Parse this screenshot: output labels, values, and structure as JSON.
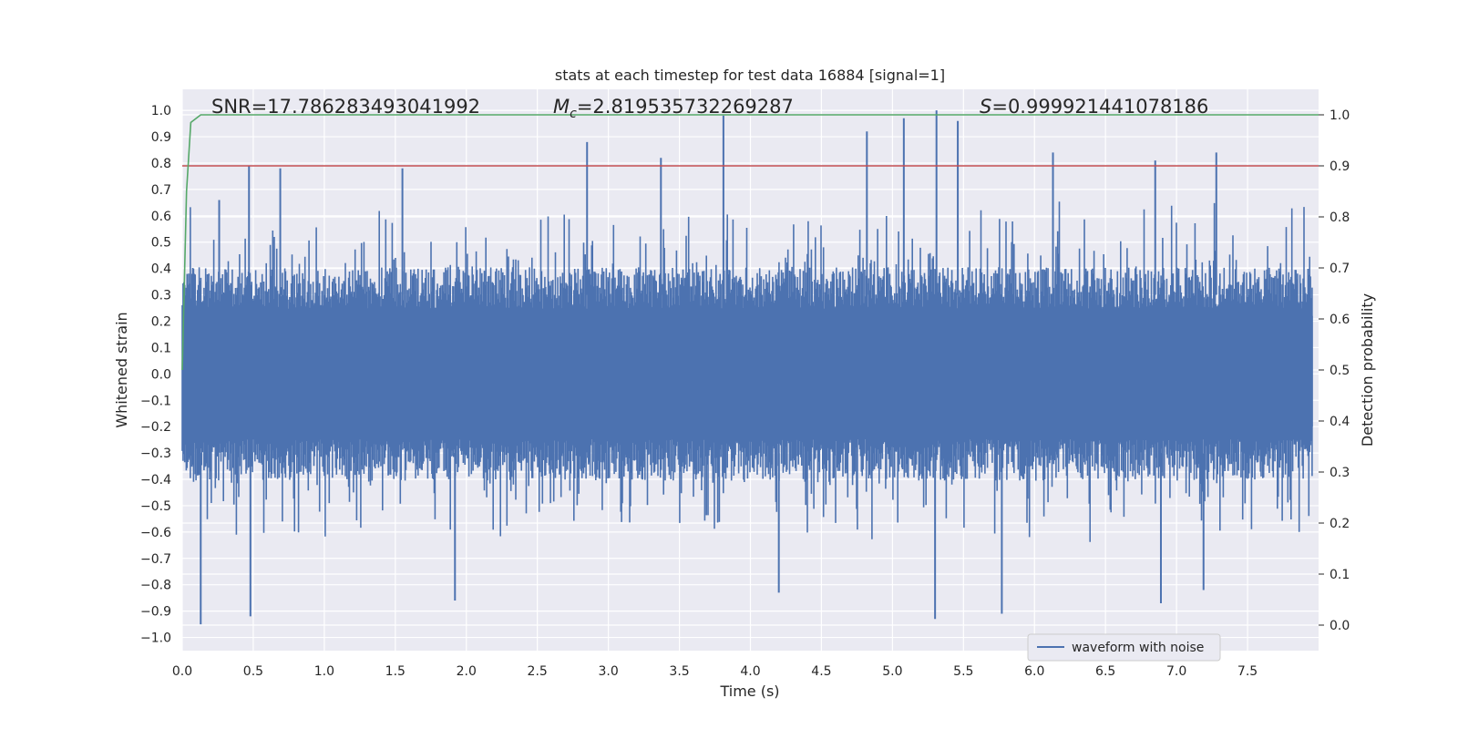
{
  "chart_data": {
    "type": "line",
    "title": "stats at each timestep for test data 16884 [signal=1]",
    "xlabel": "Time (s)",
    "ylabel_left": "Whitened strain",
    "ylabel_right": "Detection probability",
    "xlim": [
      0.0,
      8.0
    ],
    "ylim_left": [
      -1.05,
      1.08
    ],
    "ylim_right": [
      -0.05,
      1.05
    ],
    "x_ticks": [
      "0.0",
      "0.5",
      "1.0",
      "1.5",
      "2.0",
      "2.5",
      "3.0",
      "3.5",
      "4.0",
      "4.5",
      "5.0",
      "5.5",
      "6.0",
      "6.5",
      "7.0",
      "7.5"
    ],
    "y_left_ticks": [
      "1.0",
      "0.9",
      "0.8",
      "0.7",
      "0.6",
      "0.5",
      "0.4",
      "0.3",
      "0.2",
      "0.1",
      "0.0",
      "-0.1",
      "-0.2",
      "-0.3",
      "-0.4",
      "-0.5",
      "-0.6",
      "-0.7",
      "-0.8",
      "-0.9",
      "-1.0"
    ],
    "y_right_ticks": [
      "1.0",
      "0.9",
      "0.8",
      "0.7",
      "0.6",
      "0.5",
      "0.4",
      "0.3",
      "0.2",
      "0.1",
      "0.0"
    ],
    "grid": true,
    "legend_position": "lower-right",
    "annotations": {
      "snr": "SNR=17.786283493041992",
      "mc_symbol": "M",
      "mc_subscript": "c",
      "mc_value": "=2.819535732269287",
      "s_symbol": "S",
      "s_value": "=0.999921441078186"
    },
    "series": [
      {
        "name": "waveform with noise",
        "axis": "left",
        "color": "#4c72b0",
        "envelope_typical": [
          -0.45,
          0.45
        ],
        "peaks": [
          {
            "x": 0.26,
            "y": 0.66
          },
          {
            "x": 0.47,
            "y": 0.79
          },
          {
            "x": 0.69,
            "y": 0.78
          },
          {
            "x": 1.55,
            "y": 0.78
          },
          {
            "x": 2.85,
            "y": 0.88
          },
          {
            "x": 3.37,
            "y": 0.82
          },
          {
            "x": 3.81,
            "y": 0.98
          },
          {
            "x": 4.82,
            "y": 0.92
          },
          {
            "x": 5.08,
            "y": 0.97
          },
          {
            "x": 5.31,
            "y": 1.0
          },
          {
            "x": 5.46,
            "y": 0.96
          },
          {
            "x": 6.13,
            "y": 0.84
          },
          {
            "x": 6.85,
            "y": 0.81
          },
          {
            "x": 7.28,
            "y": 0.84
          }
        ],
        "troughs": [
          {
            "x": 0.13,
            "y": -0.95
          },
          {
            "x": 0.48,
            "y": -0.92
          },
          {
            "x": 1.92,
            "y": -0.86
          },
          {
            "x": 4.2,
            "y": -0.83
          },
          {
            "x": 5.3,
            "y": -0.93
          },
          {
            "x": 5.77,
            "y": -0.91
          },
          {
            "x": 6.89,
            "y": -0.87
          },
          {
            "x": 7.19,
            "y": -0.82
          }
        ]
      },
      {
        "name": "",
        "axis": "right",
        "color": "#55a868",
        "x": [
          0.0,
          0.03,
          0.06,
          0.13,
          0.5,
          1.0,
          2.0,
          4.0,
          6.0,
          8.0
        ],
        "y": [
          0.5,
          0.85,
          0.985,
          1.0,
          1.0,
          1.0,
          1.0,
          1.0,
          1.0,
          1.0
        ]
      },
      {
        "name": "",
        "axis": "right",
        "color": "#c44e52",
        "x": [
          0.0,
          8.0
        ],
        "y": [
          0.9,
          0.9
        ]
      }
    ]
  }
}
